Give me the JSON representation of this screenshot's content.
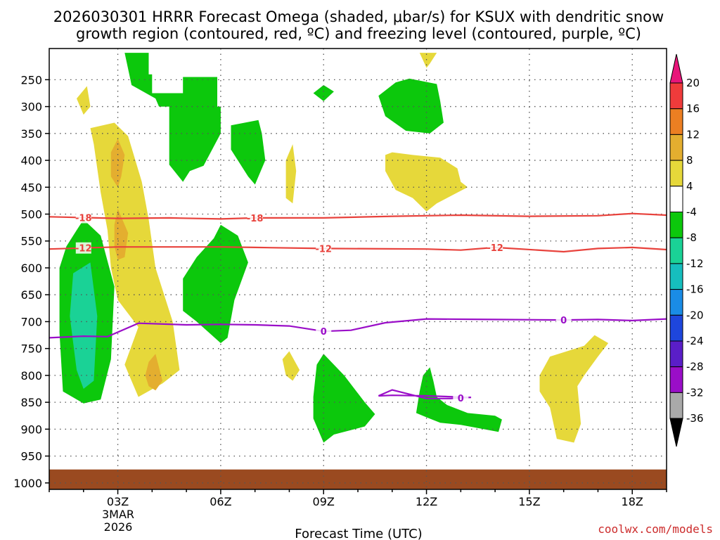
{
  "chart_data": {
    "type": "contour",
    "title_line1": "2026030301 HRRR Forecast Omega (shaded, μbar/s) for KSUX with dendritic snow",
    "title_line2": "growth region (contoured, red, ºC) and freezing level (contoured, purple, ºC)",
    "xlabel": "Forecast Time (UTC)",
    "x_ticks": [
      "03Z",
      "06Z",
      "09Z",
      "12Z",
      "15Z",
      "18Z"
    ],
    "x_tick_hours": [
      3,
      6,
      9,
      12,
      15,
      18
    ],
    "x_date_label": [
      "3MAR",
      "2026"
    ],
    "xlim": [
      1,
      19
    ],
    "y_ticks": [
      "250",
      "300",
      "350",
      "400",
      "450",
      "500",
      "550",
      "600",
      "650",
      "700",
      "750",
      "800",
      "850",
      "900",
      "950",
      "1000"
    ],
    "y_tick_values": [
      250,
      300,
      350,
      400,
      450,
      500,
      550,
      600,
      650,
      700,
      750,
      800,
      850,
      900,
      950,
      1000
    ],
    "ylim": [
      200,
      1020
    ],
    "surface_pressure": 975,
    "colorbar": {
      "levels": [
        "20",
        "16",
        "12",
        "8",
        "4",
        "-4",
        "-8",
        "-12",
        "-16",
        "-20",
        "-24",
        "-28",
        "-32",
        "-36"
      ],
      "colors": [
        "#e8157a",
        "#ef3b3b",
        "#ec7f22",
        "#e4ae2f",
        "#e6d83a",
        "#ffffff",
        "#0cc80c",
        "#1ad296",
        "#16bebe",
        "#1a8ce6",
        "#1e46dc",
        "#5a1ec8",
        "#9a0ec8",
        "#a9a9a9",
        "#000000"
      ]
    },
    "shading_colors": {
      "green": "#0cc80c",
      "teal": "#1ad296",
      "yellow": "#e6d83a",
      "orange": "#e4ae2f",
      "ground": "#9a4a20"
    },
    "contours": [
      {
        "label": "-18",
        "color": "#e8423c",
        "points": [
          [
            1,
            505
          ],
          [
            3,
            508
          ],
          [
            4.5,
            507
          ],
          [
            6,
            509
          ],
          [
            7,
            507
          ],
          [
            9,
            507
          ],
          [
            11,
            504
          ],
          [
            13,
            502
          ],
          [
            15,
            504
          ],
          [
            17,
            503
          ],
          [
            18,
            499
          ],
          [
            19,
            502
          ]
        ],
        "label_hours": [
          2,
          7
        ]
      },
      {
        "label": "-12",
        "color": "#e8423c",
        "points": [
          [
            1,
            565
          ],
          [
            2,
            563
          ],
          [
            3,
            561
          ],
          [
            6,
            561
          ],
          [
            7,
            562
          ],
          [
            9,
            564
          ],
          [
            12,
            565
          ],
          [
            13,
            567
          ],
          [
            14,
            562
          ],
          [
            16,
            570
          ],
          [
            17,
            564
          ],
          [
            18,
            562
          ],
          [
            19,
            566
          ]
        ],
        "label_hours": [
          2,
          9,
          14
        ]
      },
      {
        "label": "0",
        "color": "#9a0ec8",
        "points": [
          [
            1,
            730
          ],
          [
            2,
            727
          ],
          [
            2.7,
            728
          ],
          [
            3.6,
            703
          ],
          [
            5,
            706
          ],
          [
            6,
            705
          ],
          [
            7,
            706
          ],
          [
            8,
            708
          ],
          [
            9,
            718
          ],
          [
            9.8,
            716
          ],
          [
            10.8,
            702
          ],
          [
            12,
            695
          ],
          [
            14,
            696
          ],
          [
            16,
            697
          ],
          [
            17,
            696
          ],
          [
            18,
            698
          ],
          [
            19,
            695
          ]
        ],
        "label_hours": [
          9,
          16
        ]
      },
      {
        "label": "0",
        "color": "#9a0ec8",
        "points": [
          [
            10.6,
            838
          ],
          [
            11,
            827
          ],
          [
            12,
            843
          ],
          [
            12.7,
            843
          ],
          [
            13.3,
            841
          ],
          [
            12,
            838
          ],
          [
            11,
            837
          ],
          [
            10.6,
            838
          ]
        ],
        "label_hours": [
          13
        ]
      }
    ],
    "omega_regions": [
      {
        "name": "green-west-cluster",
        "value_band": "-8 to -4",
        "color": "green",
        "points": [
          [
            2.8,
            200
          ],
          [
            3.9,
            200
          ],
          [
            3.9,
            240
          ],
          [
            4,
            240
          ],
          [
            4,
            275
          ],
          [
            4.9,
            275
          ],
          [
            4.9,
            245
          ],
          [
            5.9,
            245
          ],
          [
            5.9,
            300
          ],
          [
            6,
            300
          ],
          [
            6,
            350
          ],
          [
            5.5,
            410
          ],
          [
            5.1,
            420
          ],
          [
            4.9,
            440
          ],
          [
            4.5,
            408
          ],
          [
            4.5,
            300
          ],
          [
            4.2,
            300
          ],
          [
            4.1,
            285
          ],
          [
            3.4,
            260
          ],
          [
            3.2,
            200
          ]
        ]
      },
      {
        "name": "green-strip-7z",
        "value_band": "-8 to -4",
        "color": "green",
        "points": [
          [
            6.3,
            335
          ],
          [
            7.1,
            325
          ],
          [
            7.2,
            350
          ],
          [
            7.3,
            400
          ],
          [
            7,
            445
          ],
          [
            6.8,
            430
          ],
          [
            6.3,
            380
          ]
        ]
      },
      {
        "name": "green-blob-09z-upper",
        "value_band": "-8 to -4",
        "color": "green",
        "points": [
          [
            9,
            260
          ],
          [
            9.3,
            272
          ],
          [
            9,
            290
          ],
          [
            8.7,
            275
          ]
        ]
      },
      {
        "name": "green-blob-11z",
        "value_band": "-8 to -4",
        "color": "green",
        "points": [
          [
            10.6,
            280
          ],
          [
            11.1,
            255
          ],
          [
            11.5,
            248
          ],
          [
            12.3,
            258
          ],
          [
            12.4,
            290
          ],
          [
            12.5,
            330
          ],
          [
            12.1,
            350
          ],
          [
            11.4,
            345
          ],
          [
            10.8,
            318
          ]
        ]
      },
      {
        "name": "green-blob-06z",
        "value_band": "-8 to -4",
        "color": "green",
        "points": [
          [
            4.9,
            620
          ],
          [
            5.3,
            580
          ],
          [
            5.8,
            545
          ],
          [
            6,
            520
          ],
          [
            6.5,
            540
          ],
          [
            6.8,
            590
          ],
          [
            6.4,
            660
          ],
          [
            6.2,
            730
          ],
          [
            6,
            740
          ],
          [
            5.3,
            700
          ],
          [
            4.9,
            680
          ]
        ]
      },
      {
        "name": "green-blob-09z-lower",
        "value_band": "-8 to -4",
        "color": "green",
        "points": [
          [
            8.7,
            840
          ],
          [
            8.8,
            780
          ],
          [
            9,
            760
          ],
          [
            9.6,
            800
          ],
          [
            10.2,
            850
          ],
          [
            10.5,
            872
          ],
          [
            10.2,
            895
          ],
          [
            9.3,
            910
          ],
          [
            9,
            925
          ],
          [
            8.7,
            880
          ]
        ]
      },
      {
        "name": "green-blob-12z-lower",
        "value_band": "-8 to -4",
        "color": "green",
        "points": [
          [
            11.7,
            870
          ],
          [
            11.8,
            830
          ],
          [
            11.9,
            800
          ],
          [
            12.1,
            785
          ],
          [
            12.2,
            810
          ],
          [
            12.3,
            840
          ],
          [
            12.6,
            855
          ],
          [
            13.2,
            870
          ],
          [
            14,
            875
          ],
          [
            14.2,
            882
          ],
          [
            14.1,
            905
          ],
          [
            13,
            892
          ],
          [
            12.4,
            888
          ],
          [
            12,
            878
          ]
        ]
      },
      {
        "name": "green-blob-west-lower",
        "value_band": "-8 to -4",
        "color": "green",
        "points": [
          [
            1.3,
            600
          ],
          [
            1.5,
            560
          ],
          [
            1.8,
            530
          ],
          [
            2,
            510
          ],
          [
            2.5,
            540
          ],
          [
            2.9,
            635
          ],
          [
            2.8,
            770
          ],
          [
            2.5,
            845
          ],
          [
            2,
            852
          ],
          [
            1.4,
            830
          ],
          [
            1.3,
            720
          ]
        ]
      },
      {
        "name": "teal-core-west",
        "value_band": "-12 to -8",
        "color": "teal",
        "points": [
          [
            1.7,
            610
          ],
          [
            2.2,
            590
          ],
          [
            2.4,
            690
          ],
          [
            2.3,
            810
          ],
          [
            2,
            825
          ],
          [
            1.8,
            790
          ],
          [
            1.6,
            690
          ]
        ]
      },
      {
        "name": "yellow-band-03z",
        "value_band": "4 to 8",
        "color": "yellow",
        "points": [
          [
            2.2,
            340
          ],
          [
            2.9,
            330
          ],
          [
            3.3,
            355
          ],
          [
            3.7,
            440
          ],
          [
            3.9,
            510
          ],
          [
            4.1,
            600
          ],
          [
            4.6,
            700
          ],
          [
            4.8,
            790
          ],
          [
            4.3,
            815
          ],
          [
            3.6,
            840
          ],
          [
            3.2,
            780
          ],
          [
            3.6,
            710
          ],
          [
            3,
            660
          ],
          [
            2.8,
            600
          ],
          [
            2.7,
            530
          ],
          [
            2.5,
            460
          ],
          [
            2.3,
            370
          ]
        ]
      },
      {
        "name": "orange-core-upper",
        "value_band": "8 to 12",
        "color": "orange",
        "points": [
          [
            2.8,
            385
          ],
          [
            3,
            360
          ],
          [
            3.2,
            390
          ],
          [
            3.1,
            430
          ],
          [
            3,
            450
          ],
          [
            2.8,
            430
          ]
        ]
      },
      {
        "name": "orange-core-mid",
        "value_band": "8 to 12",
        "color": "orange",
        "points": [
          [
            2.9,
            520
          ],
          [
            3,
            490
          ],
          [
            3.3,
            535
          ],
          [
            3.2,
            580
          ],
          [
            3,
            585
          ],
          [
            2.9,
            560
          ]
        ]
      },
      {
        "name": "orange-core-lower",
        "value_band": "8 to 12",
        "color": "orange",
        "points": [
          [
            3.8,
            800
          ],
          [
            3.9,
            775
          ],
          [
            4.1,
            760
          ],
          [
            4.3,
            810
          ],
          [
            4.1,
            828
          ],
          [
            3.9,
            820
          ]
        ]
      },
      {
        "name": "yellow-spot-upper",
        "value_band": "4 to 8",
        "color": "yellow",
        "points": [
          [
            1.8,
            285
          ],
          [
            2.1,
            262
          ],
          [
            2.2,
            300
          ],
          [
            2,
            315
          ]
        ]
      },
      {
        "name": "yellow-spot-top",
        "value_band": "4 to 8",
        "color": "yellow",
        "points": [
          [
            11.8,
            200
          ],
          [
            12.3,
            200
          ],
          [
            12.1,
            220
          ],
          [
            12,
            228
          ]
        ]
      },
      {
        "name": "yellow-sliver-8z",
        "value_band": "4 to 8",
        "color": "yellow",
        "points": [
          [
            7.9,
            400
          ],
          [
            8.1,
            370
          ],
          [
            8.2,
            420
          ],
          [
            8.1,
            480
          ],
          [
            7.9,
            470
          ]
        ]
      },
      {
        "name": "yellow-spot-8z-lower",
        "value_band": "4 to 8",
        "color": "yellow",
        "points": [
          [
            7.8,
            770
          ],
          [
            8,
            755
          ],
          [
            8.3,
            790
          ],
          [
            8.1,
            810
          ],
          [
            7.9,
            800
          ]
        ]
      },
      {
        "name": "yellow-blob-12z",
        "value_band": "4 to 8",
        "color": "yellow",
        "points": [
          [
            10.8,
            390
          ],
          [
            11,
            385
          ],
          [
            11.6,
            390
          ],
          [
            12.4,
            395
          ],
          [
            12.9,
            415
          ],
          [
            13,
            440
          ],
          [
            13.2,
            450
          ],
          [
            12.9,
            460
          ],
          [
            12.3,
            480
          ],
          [
            12,
            495
          ],
          [
            11.6,
            470
          ],
          [
            11.1,
            455
          ],
          [
            10.8,
            420
          ]
        ]
      },
      {
        "name": "yellow-blob-16z",
        "value_band": "4 to 8",
        "color": "yellow",
        "points": [
          [
            15.3,
            800
          ],
          [
            15.6,
            765
          ],
          [
            16.1,
            755
          ],
          [
            16.6,
            745
          ],
          [
            16.9,
            725
          ],
          [
            17.3,
            740
          ],
          [
            17,
            765
          ],
          [
            16.6,
            800
          ],
          [
            16.4,
            820
          ],
          [
            16.5,
            890
          ],
          [
            16.3,
            925
          ],
          [
            15.8,
            918
          ],
          [
            15.6,
            860
          ],
          [
            15.3,
            830
          ]
        ]
      }
    ]
  },
  "credit": "coolwx.com/models"
}
